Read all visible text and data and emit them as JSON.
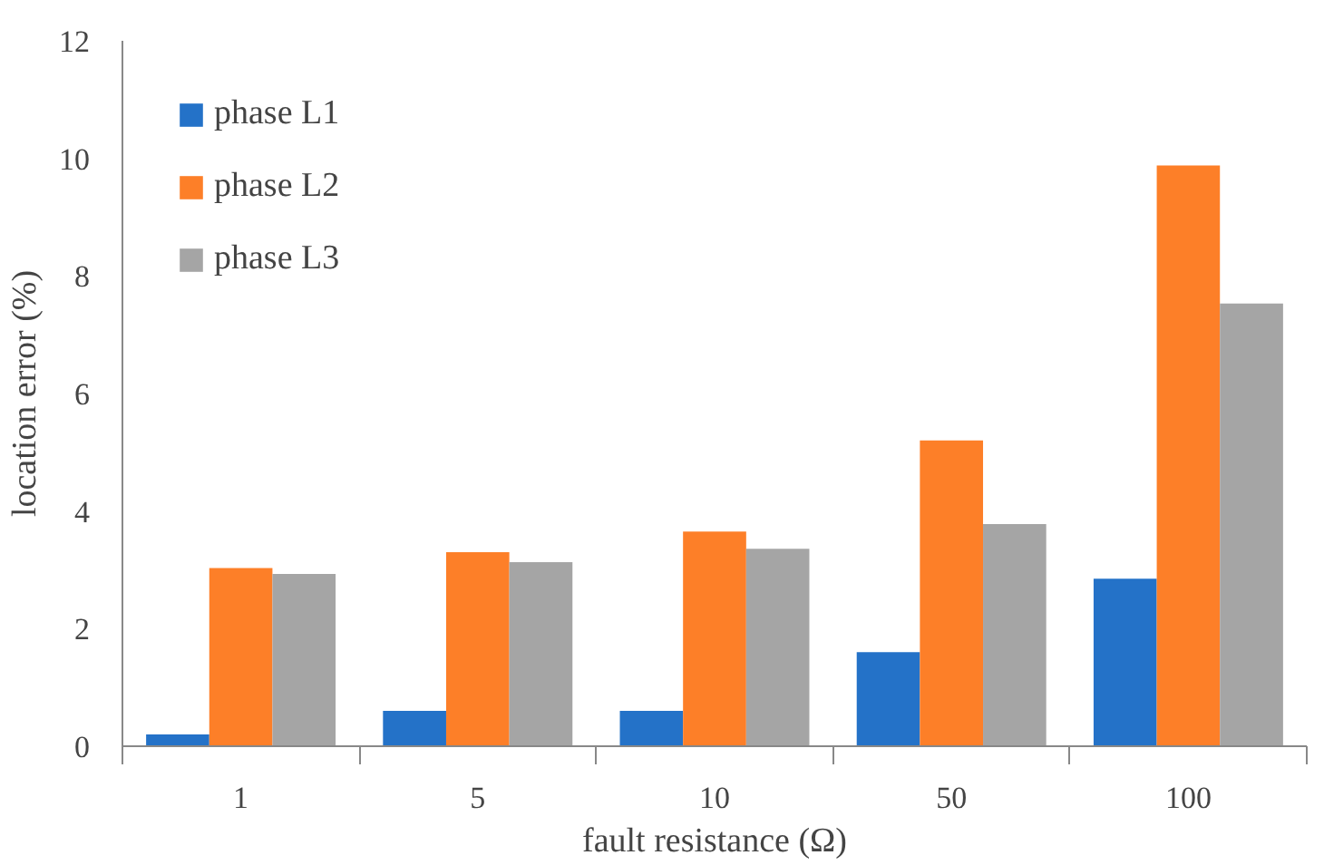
{
  "chart_data": {
    "type": "bar",
    "xlabel": "fault resistance (Ω)",
    "ylabel": "location error (%)",
    "categories": [
      "1",
      "5",
      "10",
      "50",
      "100"
    ],
    "series": [
      {
        "name": "phase L1",
        "color": "#2472c8",
        "values": [
          0.2,
          0.6,
          0.6,
          1.6,
          2.85
        ]
      },
      {
        "name": "phase L2",
        "color": "#fd7f28",
        "values": [
          3.03,
          3.3,
          3.65,
          5.2,
          9.88
        ]
      },
      {
        "name": "phase L3",
        "color": "#a5a5a5",
        "values": [
          2.93,
          3.13,
          3.36,
          3.78,
          7.53
        ]
      }
    ],
    "ylim": [
      0,
      12
    ],
    "yticks": [
      0,
      2,
      4,
      6,
      8,
      10,
      12
    ],
    "grid": false,
    "legend": "top left"
  }
}
